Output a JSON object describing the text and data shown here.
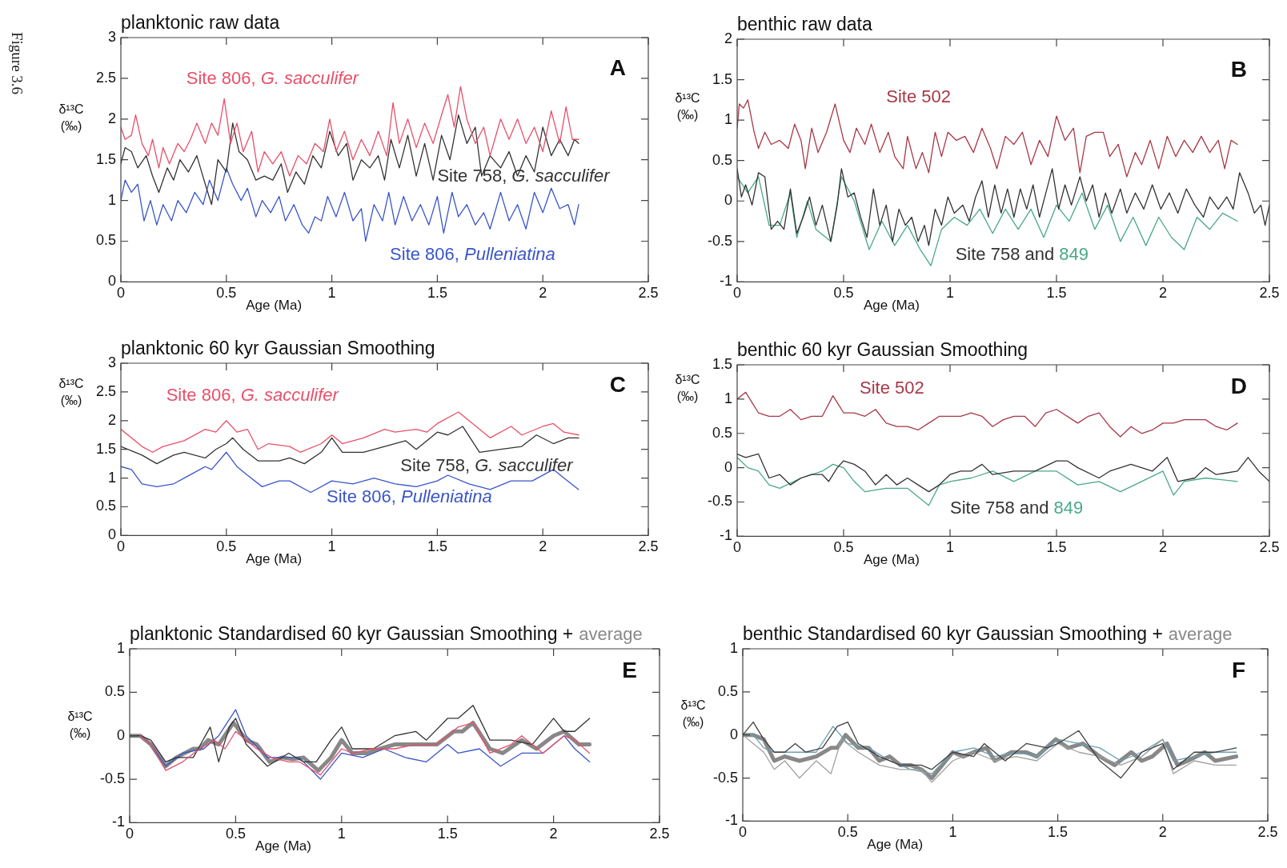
{
  "chart_data": [
    {
      "type": "line",
      "title": "planktonic raw data",
      "xlabel": "Age (Ma)",
      "ylabel": "δ¹³C (‰)",
      "annotations": [
        "A",
        "Figure 3.6"
      ],
      "xlim": [
        0,
        2.5
      ],
      "xticks": [
        0,
        0.5,
        1,
        1.5,
        2,
        2.5
      ],
      "ylim": [
        0,
        3
      ],
      "yticks": [
        0,
        0.5,
        1,
        1.5,
        2,
        2.5,
        3
      ],
      "series": [
        {
          "name": "Site 806, G. sacculifer",
          "color": "#e8506a",
          "x": [
            0,
            0.02,
            0.05,
            0.07,
            0.1,
            0.13,
            0.15,
            0.18,
            0.2,
            0.23,
            0.27,
            0.3,
            0.33,
            0.36,
            0.4,
            0.43,
            0.46,
            0.49,
            0.52,
            0.55,
            0.58,
            0.62,
            0.65,
            0.68,
            0.72,
            0.76,
            0.8,
            0.84,
            0.88,
            0.92,
            0.96,
            0.99,
            1.02,
            1.06,
            1.1,
            1.14,
            1.18,
            1.22,
            1.26,
            1.29,
            1.32,
            1.36,
            1.4,
            1.44,
            1.48,
            1.52,
            1.55,
            1.58,
            1.61,
            1.64,
            1.68,
            1.72,
            1.75,
            1.8,
            1.84,
            1.88,
            1.92,
            1.96,
            2.0,
            2.04,
            2.08,
            2.11,
            2.14,
            2.17
          ],
          "values": [
            1.9,
            1.75,
            1.8,
            2.05,
            1.7,
            1.55,
            1.75,
            1.4,
            1.65,
            1.45,
            1.7,
            1.6,
            1.75,
            1.95,
            1.7,
            1.95,
            1.8,
            2.25,
            1.7,
            1.95,
            1.6,
            1.85,
            1.35,
            1.6,
            1.45,
            1.6,
            1.3,
            1.55,
            1.45,
            1.7,
            1.6,
            2.0,
            1.6,
            1.85,
            1.5,
            1.75,
            1.55,
            1.85,
            1.55,
            2.2,
            1.7,
            2.0,
            1.65,
            1.95,
            1.7,
            2.05,
            2.3,
            1.9,
            2.4,
            2.0,
            1.7,
            1.9,
            1.55,
            2.0,
            1.75,
            2.0,
            1.7,
            1.9,
            1.6,
            2.1,
            1.7,
            2.15,
            1.75,
            1.75
          ]
        },
        {
          "name": "Site 758, G. sacculifer",
          "color": "#333333",
          "x": [
            0,
            0.02,
            0.05,
            0.08,
            0.12,
            0.15,
            0.18,
            0.22,
            0.25,
            0.28,
            0.32,
            0.36,
            0.4,
            0.43,
            0.46,
            0.5,
            0.53,
            0.56,
            0.6,
            0.64,
            0.68,
            0.72,
            0.76,
            0.79,
            0.83,
            0.87,
            0.91,
            0.95,
            0.99,
            1.03,
            1.07,
            1.1,
            1.14,
            1.18,
            1.22,
            1.25,
            1.28,
            1.32,
            1.36,
            1.4,
            1.44,
            1.48,
            1.52,
            1.56,
            1.6,
            1.64,
            1.68,
            1.71,
            1.75,
            1.8,
            1.84,
            1.88,
            1.92,
            1.96,
            2.0,
            2.04,
            2.08,
            2.12,
            2.15,
            2.17
          ],
          "values": [
            1.45,
            1.65,
            1.6,
            1.4,
            1.55,
            1.3,
            1.1,
            1.4,
            1.25,
            1.5,
            1.35,
            1.55,
            1.2,
            0.95,
            1.5,
            1.35,
            1.95,
            1.6,
            1.5,
            1.25,
            1.3,
            1.25,
            1.45,
            1.1,
            1.35,
            1.2,
            1.55,
            1.4,
            1.85,
            1.55,
            1.7,
            1.25,
            1.5,
            1.4,
            1.55,
            1.25,
            1.75,
            1.4,
            1.8,
            1.3,
            1.7,
            1.25,
            1.8,
            1.5,
            2.05,
            1.7,
            1.9,
            1.3,
            1.55,
            1.4,
            1.6,
            1.3,
            1.55,
            1.35,
            1.9,
            1.55,
            1.75,
            1.55,
            1.75,
            1.7
          ]
        },
        {
          "name": "Site 806, Pulleniatina",
          "color": "#3a55c8",
          "x": [
            0,
            0.02,
            0.05,
            0.08,
            0.11,
            0.14,
            0.17,
            0.2,
            0.24,
            0.27,
            0.31,
            0.35,
            0.39,
            0.42,
            0.46,
            0.5,
            0.53,
            0.57,
            0.6,
            0.64,
            0.67,
            0.71,
            0.75,
            0.78,
            0.82,
            0.86,
            0.89,
            0.92,
            0.95,
            0.98,
            1.02,
            1.06,
            1.1,
            1.14,
            1.16,
            1.2,
            1.24,
            1.27,
            1.3,
            1.34,
            1.38,
            1.42,
            1.46,
            1.5,
            1.53,
            1.57,
            1.6,
            1.64,
            1.68,
            1.72,
            1.75,
            1.8,
            1.84,
            1.88,
            1.92,
            1.96,
            2.0,
            2.04,
            2.08,
            2.12,
            2.15,
            2.17
          ],
          "values": [
            1.0,
            1.25,
            1.1,
            1.2,
            0.75,
            1.0,
            0.7,
            0.95,
            0.75,
            1.0,
            0.85,
            1.1,
            0.95,
            1.25,
            1.0,
            1.4,
            1.2,
            1.0,
            1.15,
            0.8,
            1.0,
            0.85,
            1.05,
            0.75,
            0.95,
            0.7,
            0.6,
            0.8,
            0.75,
            1.05,
            0.8,
            1.1,
            0.75,
            0.9,
            0.5,
            0.95,
            0.75,
            1.1,
            0.7,
            1.05,
            0.75,
            0.95,
            0.7,
            1.05,
            0.6,
            1.1,
            0.8,
            0.95,
            0.7,
            0.85,
            0.65,
            1.1,
            0.75,
            0.95,
            0.65,
            1.1,
            0.85,
            1.15,
            0.9,
            0.95,
            0.7,
            0.95
          ]
        }
      ]
    },
    {
      "type": "line",
      "title": "benthic raw data",
      "xlabel": "Age (Ma)",
      "ylabel": "δ¹³C (‰)",
      "annotations": [
        "B"
      ],
      "xlim": [
        0,
        2.5
      ],
      "xticks": [
        0,
        0.5,
        1,
        1.5,
        2,
        2.5
      ],
      "ylim": [
        -1,
        2
      ],
      "yticks": [
        -1,
        -0.5,
        0,
        0.5,
        1,
        1.5,
        2
      ],
      "series": [
        {
          "name": "Site 502",
          "color": "#a83848",
          "x": [
            0,
            0.01,
            0.03,
            0.05,
            0.08,
            0.1,
            0.13,
            0.16,
            0.2,
            0.24,
            0.27,
            0.3,
            0.32,
            0.35,
            0.38,
            0.42,
            0.46,
            0.5,
            0.53,
            0.56,
            0.6,
            0.63,
            0.67,
            0.71,
            0.74,
            0.78,
            0.8,
            0.84,
            0.87,
            0.9,
            0.93,
            0.96,
            0.99,
            1.03,
            1.07,
            1.11,
            1.15,
            1.19,
            1.22,
            1.26,
            1.3,
            1.34,
            1.38,
            1.42,
            1.46,
            1.5,
            1.54,
            1.58,
            1.61,
            1.64,
            1.68,
            1.72,
            1.75,
            1.79,
            1.83,
            1.87,
            1.9,
            1.94,
            1.98,
            2.02,
            2.06,
            2.1,
            2.14,
            2.18,
            2.22,
            2.26,
            2.29,
            2.32,
            2.35
          ],
          "values": [
            0.9,
            1.2,
            1.15,
            1.25,
            0.85,
            0.65,
            0.85,
            0.7,
            0.75,
            0.65,
            0.95,
            0.75,
            0.4,
            0.9,
            0.6,
            0.85,
            1.2,
            0.75,
            0.6,
            0.9,
            0.7,
            0.95,
            0.6,
            0.85,
            0.55,
            0.4,
            0.8,
            0.4,
            0.6,
            0.35,
            0.85,
            0.55,
            0.85,
            0.75,
            0.8,
            0.6,
            0.9,
            0.65,
            0.4,
            0.8,
            0.7,
            0.85,
            0.45,
            0.75,
            0.55,
            1.05,
            0.75,
            0.9,
            0.35,
            0.8,
            0.85,
            0.85,
            0.55,
            0.7,
            0.3,
            0.6,
            0.45,
            0.75,
            0.4,
            0.8,
            0.55,
            0.75,
            0.6,
            0.8,
            0.6,
            0.75,
            0.4,
            0.75,
            0.7
          ]
        },
        {
          "name": "Site 758 and",
          "color": "#333333",
          "x": [
            0,
            0.02,
            0.04,
            0.07,
            0.1,
            0.13,
            0.16,
            0.19,
            0.22,
            0.25,
            0.28,
            0.31,
            0.34,
            0.37,
            0.4,
            0.44,
            0.47,
            0.49,
            0.52,
            0.55,
            0.58,
            0.61,
            0.64,
            0.67,
            0.7,
            0.73,
            0.76,
            0.79,
            0.82,
            0.85,
            0.88,
            0.9,
            0.93,
            0.96,
            0.99,
            1.02,
            1.06,
            1.09,
            1.12,
            1.15,
            1.18,
            1.21,
            1.24,
            1.27,
            1.3,
            1.33,
            1.36,
            1.39,
            1.42,
            1.45,
            1.48,
            1.51,
            1.54,
            1.57,
            1.61,
            1.64,
            1.67,
            1.7,
            1.73,
            1.76,
            1.8,
            1.83,
            1.87,
            1.91,
            1.95,
            1.99,
            2.03,
            2.07,
            2.11,
            2.15,
            2.19,
            2.22,
            2.26,
            2.3,
            2.33,
            2.36,
            2.4,
            2.43,
            2.46,
            2.48,
            2.5
          ],
          "values": [
            0.4,
            0.05,
            0.2,
            -0.05,
            0.35,
            0.3,
            -0.35,
            -0.25,
            -0.35,
            0.15,
            -0.4,
            -0.2,
            0.05,
            -0.3,
            -0.05,
            -0.5,
            -0.05,
            0.4,
            0.05,
            0.1,
            -0.2,
            -0.45,
            0.15,
            -0.3,
            -0.05,
            -0.5,
            -0.1,
            -0.3,
            -0.2,
            -0.5,
            -0.3,
            -0.55,
            -0.1,
            -0.3,
            0.05,
            -0.15,
            -0.05,
            -0.25,
            0.05,
            0.25,
            -0.2,
            0.2,
            -0.15,
            0.15,
            -0.2,
            0.15,
            -0.1,
            0.2,
            -0.2,
            0.1,
            0.4,
            -0.1,
            0.2,
            -0.05,
            0.3,
            0.0,
            0.2,
            -0.2,
            0.1,
            -0.15,
            0.15,
            -0.15,
            0.1,
            -0.1,
            0.2,
            -0.1,
            0.1,
            -0.15,
            0.15,
            -0.05,
            -0.2,
            0.05,
            -0.1,
            0.05,
            -0.1,
            0.35,
            0.1,
            -0.15,
            -0.05,
            -0.3,
            -0.05
          ]
        },
        {
          "name": "849",
          "color": "#4aa888",
          "x": [
            0,
            0.05,
            0.1,
            0.15,
            0.2,
            0.25,
            0.28,
            0.33,
            0.37,
            0.44,
            0.49,
            0.55,
            0.62,
            0.68,
            0.74,
            0.8,
            0.86,
            0.91,
            0.96,
            1.02,
            1.08,
            1.14,
            1.2,
            1.26,
            1.32,
            1.38,
            1.44,
            1.5,
            1.56,
            1.62,
            1.68,
            1.74,
            1.8,
            1.86,
            1.92,
            1.98,
            2.04,
            2.1,
            2.16,
            2.22,
            2.28,
            2.35
          ],
          "values": [
            0.3,
            0.1,
            0.3,
            -0.3,
            -0.3,
            0.1,
            -0.45,
            0.0,
            -0.35,
            -0.5,
            0.3,
            0.0,
            -0.6,
            -0.25,
            -0.55,
            -0.3,
            -0.6,
            -0.8,
            -0.35,
            -0.2,
            -0.3,
            -0.1,
            -0.4,
            -0.1,
            -0.35,
            -0.1,
            -0.45,
            -0.05,
            -0.25,
            0.1,
            -0.35,
            -0.05,
            -0.5,
            -0.2,
            -0.55,
            -0.2,
            -0.45,
            -0.6,
            -0.2,
            -0.35,
            -0.15,
            -0.25
          ]
        }
      ]
    },
    {
      "type": "line",
      "title": "planktonic 60 kyr Gaussian Smoothing",
      "xlabel": "Age (Ma)",
      "ylabel": "δ¹³C (‰)",
      "annotations": [
        "C"
      ],
      "xlim": [
        0,
        2.5
      ],
      "xticks": [
        0,
        0.5,
        1,
        1.5,
        2,
        2.5
      ],
      "ylim": [
        0,
        3
      ],
      "yticks": [
        0,
        0.5,
        1,
        1.5,
        2,
        2.5,
        3
      ],
      "series": [
        {
          "name": "Site 806, G. sacculifer",
          "color": "#e8506a",
          "x": [
            0,
            0.1,
            0.15,
            0.2,
            0.3,
            0.4,
            0.45,
            0.5,
            0.55,
            0.6,
            0.65,
            0.7,
            0.8,
            0.85,
            0.95,
            1.0,
            1.05,
            1.15,
            1.25,
            1.3,
            1.4,
            1.45,
            1.5,
            1.6,
            1.65,
            1.75,
            1.85,
            1.9,
            2.0,
            2.05,
            2.1,
            2.17
          ],
          "values": [
            1.85,
            1.55,
            1.45,
            1.55,
            1.65,
            1.85,
            1.8,
            2.0,
            1.8,
            1.85,
            1.5,
            1.6,
            1.55,
            1.45,
            1.6,
            1.75,
            1.6,
            1.7,
            1.85,
            1.8,
            1.85,
            1.8,
            1.95,
            2.15,
            2.0,
            1.7,
            1.9,
            1.75,
            1.9,
            1.95,
            1.8,
            1.75
          ]
        },
        {
          "name": "Site 758, G. sacculifer",
          "color": "#333333",
          "x": [
            0,
            0.1,
            0.17,
            0.25,
            0.3,
            0.4,
            0.45,
            0.5,
            0.53,
            0.58,
            0.65,
            0.75,
            0.8,
            0.87,
            0.95,
            1.0,
            1.05,
            1.15,
            1.25,
            1.35,
            1.4,
            1.45,
            1.5,
            1.55,
            1.62,
            1.7,
            1.8,
            1.9,
            1.97,
            2.05,
            2.12,
            2.17
          ],
          "values": [
            1.55,
            1.4,
            1.25,
            1.4,
            1.45,
            1.35,
            1.5,
            1.6,
            1.7,
            1.5,
            1.3,
            1.3,
            1.35,
            1.25,
            1.45,
            1.7,
            1.45,
            1.45,
            1.55,
            1.65,
            1.5,
            1.65,
            1.8,
            1.75,
            1.9,
            1.45,
            1.5,
            1.55,
            1.75,
            1.6,
            1.7,
            1.7
          ]
        },
        {
          "name": "Site 806, Pulleniatina",
          "color": "#3a55c8",
          "x": [
            0,
            0.05,
            0.1,
            0.17,
            0.25,
            0.3,
            0.4,
            0.43,
            0.5,
            0.55,
            0.6,
            0.67,
            0.75,
            0.8,
            0.9,
            1.0,
            1.1,
            1.2,
            1.3,
            1.4,
            1.5,
            1.55,
            1.65,
            1.75,
            1.85,
            1.95,
            2.05,
            2.1,
            2.17
          ],
          "values": [
            1.2,
            1.15,
            0.9,
            0.85,
            0.9,
            1.0,
            1.2,
            1.15,
            1.45,
            1.2,
            1.05,
            0.85,
            0.95,
            0.95,
            0.75,
            0.95,
            0.9,
            1.0,
            0.9,
            0.85,
            0.95,
            1.05,
            0.9,
            0.8,
            0.95,
            0.95,
            1.15,
            1.0,
            0.8
          ]
        }
      ]
    },
    {
      "type": "line",
      "title": "benthic 60 kyr Gaussian Smoothing",
      "xlabel": "Age (Ma)",
      "ylabel": "δ¹³C (‰)",
      "annotations": [
        "D"
      ],
      "xlim": [
        0,
        2.5
      ],
      "xticks": [
        0,
        0.5,
        1,
        1.5,
        2,
        2.5
      ],
      "ylim": [
        -1,
        1.5
      ],
      "yticks": [
        -1,
        -0.5,
        0,
        0.5,
        1,
        1.5
      ],
      "series": [
        {
          "name": "Site 502",
          "color": "#a83848",
          "x": [
            0,
            0.04,
            0.1,
            0.15,
            0.2,
            0.25,
            0.3,
            0.35,
            0.4,
            0.45,
            0.5,
            0.55,
            0.6,
            0.65,
            0.7,
            0.75,
            0.8,
            0.85,
            0.9,
            0.95,
            1.0,
            1.05,
            1.1,
            1.15,
            1.2,
            1.25,
            1.3,
            1.35,
            1.4,
            1.45,
            1.5,
            1.6,
            1.65,
            1.7,
            1.75,
            1.8,
            1.85,
            1.9,
            1.95,
            2.0,
            2.05,
            2.1,
            2.2,
            2.25,
            2.3,
            2.35
          ],
          "values": [
            1.0,
            1.1,
            0.8,
            0.75,
            0.75,
            0.85,
            0.7,
            0.75,
            0.75,
            1.05,
            0.8,
            0.8,
            0.75,
            0.85,
            0.65,
            0.6,
            0.6,
            0.55,
            0.65,
            0.75,
            0.75,
            0.75,
            0.8,
            0.75,
            0.6,
            0.7,
            0.75,
            0.75,
            0.6,
            0.8,
            0.85,
            0.65,
            0.75,
            0.8,
            0.6,
            0.45,
            0.6,
            0.5,
            0.55,
            0.65,
            0.65,
            0.7,
            0.7,
            0.6,
            0.55,
            0.65
          ]
        },
        {
          "name": "Site 758 and",
          "color": "#333333",
          "x": [
            0,
            0.04,
            0.1,
            0.15,
            0.2,
            0.25,
            0.3,
            0.35,
            0.4,
            0.43,
            0.47,
            0.5,
            0.55,
            0.6,
            0.65,
            0.7,
            0.75,
            0.8,
            0.85,
            0.9,
            0.95,
            1.0,
            1.05,
            1.1,
            1.15,
            1.2,
            1.3,
            1.4,
            1.5,
            1.55,
            1.6,
            1.7,
            1.75,
            1.85,
            1.95,
            2.02,
            2.07,
            2.15,
            2.2,
            2.25,
            2.35,
            2.4,
            2.45,
            2.5
          ],
          "values": [
            0.2,
            0.15,
            0.2,
            -0.15,
            -0.1,
            -0.25,
            -0.15,
            -0.1,
            -0.1,
            -0.2,
            0.0,
            0.1,
            0.05,
            -0.05,
            -0.25,
            -0.1,
            -0.25,
            -0.15,
            -0.25,
            -0.35,
            -0.25,
            -0.1,
            -0.05,
            -0.05,
            0.05,
            -0.1,
            -0.05,
            -0.05,
            0.1,
            0.1,
            0.0,
            -0.15,
            -0.05,
            0.05,
            -0.05,
            0.15,
            -0.2,
            -0.15,
            0.0,
            -0.1,
            -0.05,
            0.15,
            -0.05,
            -0.2
          ]
        },
        {
          "name": "849",
          "color": "#4aa888",
          "x": [
            0,
            0.05,
            0.1,
            0.15,
            0.2,
            0.3,
            0.4,
            0.45,
            0.5,
            0.55,
            0.6,
            0.7,
            0.8,
            0.9,
            0.95,
            1.0,
            1.1,
            1.2,
            1.3,
            1.4,
            1.5,
            1.6,
            1.7,
            1.8,
            1.9,
            2.0,
            2.05,
            2.1,
            2.2,
            2.35
          ],
          "values": [
            0.15,
            0.0,
            -0.05,
            -0.25,
            -0.3,
            -0.15,
            -0.05,
            0.05,
            0.0,
            -0.2,
            -0.35,
            -0.3,
            -0.3,
            -0.55,
            -0.25,
            -0.2,
            -0.15,
            -0.05,
            -0.2,
            -0.05,
            -0.05,
            -0.25,
            -0.2,
            -0.35,
            -0.2,
            -0.05,
            -0.4,
            -0.2,
            -0.15,
            -0.2
          ]
        }
      ]
    },
    {
      "type": "line",
      "title": "planktonic Standardised 60 kyr Gaussian Smoothing +",
      "xlabel": "Age (Ma)",
      "ylabel": "δ¹³C (‰)",
      "annotations": [
        "E"
      ],
      "xlim": [
        0,
        2.5
      ],
      "xticks": [
        0,
        0.5,
        1,
        1.5,
        2,
        2.5
      ],
      "ylim": [
        -1,
        1
      ],
      "yticks": [
        -1,
        -0.5,
        0,
        0.5,
        1
      ],
      "series": [
        {
          "color": "#e8506a",
          "x": [
            0.05,
            0.1,
            0.17,
            0.25,
            0.33,
            0.4,
            0.45,
            0.5,
            0.55,
            0.6,
            0.67,
            0.75,
            0.8,
            0.9,
            1.0,
            1.05,
            1.15,
            1.25,
            1.35,
            1.45,
            1.55,
            1.62,
            1.7,
            1.8,
            1.85,
            1.95,
            2.05,
            2.1,
            2.17
          ],
          "values": [
            0.0,
            -0.1,
            -0.4,
            -0.3,
            -0.15,
            -0.05,
            -0.15,
            0.05,
            -0.05,
            -0.15,
            -0.25,
            -0.3,
            -0.3,
            -0.45,
            -0.15,
            -0.2,
            -0.15,
            -0.15,
            -0.1,
            -0.1,
            0.1,
            0.15,
            -0.2,
            -0.1,
            0.0,
            -0.2,
            0.0,
            -0.05,
            -0.2
          ]
        },
        {
          "color": "#333333",
          "x": [
            0,
            0.05,
            0.1,
            0.17,
            0.22,
            0.3,
            0.38,
            0.42,
            0.47,
            0.5,
            0.55,
            0.65,
            0.75,
            0.82,
            0.88,
            0.95,
            1.0,
            1.05,
            1.15,
            1.25,
            1.35,
            1.4,
            1.5,
            1.55,
            1.62,
            1.7,
            1.8,
            1.9,
            2.0,
            2.05,
            2.1,
            2.17
          ],
          "values": [
            0.0,
            0.0,
            -0.05,
            -0.3,
            -0.25,
            -0.25,
            0.1,
            -0.3,
            0.1,
            0.2,
            -0.1,
            -0.35,
            -0.2,
            -0.3,
            -0.3,
            -0.05,
            0.1,
            -0.15,
            -0.15,
            0.0,
            0.05,
            -0.05,
            0.2,
            0.2,
            0.35,
            -0.05,
            -0.05,
            -0.1,
            0.2,
            0.05,
            0.05,
            0.2
          ]
        },
        {
          "color": "#3a55c8",
          "x": [
            0,
            0.05,
            0.1,
            0.17,
            0.25,
            0.35,
            0.42,
            0.5,
            0.55,
            0.65,
            0.75,
            0.8,
            0.9,
            1.0,
            1.1,
            1.2,
            1.3,
            1.4,
            1.5,
            1.55,
            1.65,
            1.75,
            1.85,
            1.95,
            2.05,
            2.1,
            2.17
          ],
          "values": [
            0.0,
            0.0,
            -0.1,
            -0.35,
            -0.2,
            -0.15,
            0.0,
            0.3,
            0.0,
            -0.25,
            -0.25,
            -0.25,
            -0.5,
            -0.2,
            -0.25,
            -0.15,
            -0.25,
            -0.3,
            -0.1,
            -0.2,
            -0.15,
            -0.35,
            -0.2,
            -0.2,
            0.0,
            -0.15,
            -0.3
          ]
        },
        {
          "name": "average",
          "color": "#888888",
          "x": [
            0,
            0.05,
            0.1,
            0.17,
            0.22,
            0.3,
            0.33,
            0.37,
            0.42,
            0.49,
            0.55,
            0.6,
            0.66,
            0.72,
            0.77,
            0.82,
            0.89,
            0.95,
            1.0,
            1.05,
            1.12,
            1.18,
            1.25,
            1.35,
            1.45,
            1.53,
            1.57,
            1.62,
            1.7,
            1.76,
            1.85,
            1.92,
            2.0,
            2.05,
            2.12,
            2.17
          ],
          "values": [
            0.0,
            0.0,
            -0.1,
            -0.35,
            -0.25,
            -0.15,
            -0.15,
            -0.05,
            -0.1,
            0.15,
            -0.05,
            -0.1,
            -0.3,
            -0.25,
            -0.27,
            -0.25,
            -0.4,
            -0.25,
            -0.05,
            -0.2,
            -0.2,
            -0.15,
            -0.1,
            -0.1,
            -0.1,
            0.05,
            0.05,
            0.15,
            -0.15,
            -0.2,
            -0.05,
            -0.15,
            0.0,
            0.05,
            -0.1,
            -0.1
          ]
        }
      ]
    },
    {
      "type": "line",
      "title": "benthic Standardised 60 kyr Gaussian Smoothing +",
      "xlabel": "Age (Ma)",
      "ylabel": "δ¹³C (‰)",
      "annotations": [
        "F"
      ],
      "xlim": [
        0,
        2.5
      ],
      "xticks": [
        0,
        0.5,
        1,
        1.5,
        2,
        2.5
      ],
      "ylim": [
        -1,
        1
      ],
      "yticks": [
        -1,
        -0.5,
        0,
        0.5,
        1
      ],
      "series": [
        {
          "color": "#404040",
          "x": [
            0,
            0.05,
            0.1,
            0.15,
            0.2,
            0.25,
            0.3,
            0.38,
            0.45,
            0.5,
            0.55,
            0.65,
            0.75,
            0.85,
            0.9,
            1.0,
            1.1,
            1.15,
            1.25,
            1.35,
            1.45,
            1.5,
            1.6,
            1.7,
            1.8,
            1.9,
            2.0,
            2.05,
            2.15,
            2.25,
            2.35
          ],
          "values": [
            0.0,
            0.15,
            -0.05,
            -0.2,
            -0.2,
            -0.1,
            -0.2,
            -0.15,
            0.1,
            0.15,
            -0.1,
            -0.25,
            -0.35,
            -0.35,
            -0.4,
            -0.2,
            -0.25,
            -0.1,
            -0.3,
            -0.1,
            -0.15,
            -0.1,
            0.05,
            -0.3,
            -0.5,
            -0.2,
            -0.1,
            -0.4,
            -0.2,
            -0.2,
            -0.15
          ]
        },
        {
          "color": "#a0a0a0",
          "x": [
            0,
            0.05,
            0.1,
            0.15,
            0.2,
            0.27,
            0.35,
            0.42,
            0.47,
            0.55,
            0.65,
            0.75,
            0.85,
            0.9,
            1.0,
            1.1,
            1.2,
            1.3,
            1.4,
            1.5,
            1.6,
            1.7,
            1.8,
            1.9,
            2.0,
            2.05,
            2.15,
            2.25,
            2.35
          ],
          "values": [
            0.0,
            -0.1,
            -0.2,
            -0.4,
            -0.3,
            -0.5,
            -0.3,
            -0.45,
            -0.05,
            -0.2,
            -0.35,
            -0.4,
            -0.4,
            -0.55,
            -0.3,
            -0.2,
            -0.3,
            -0.25,
            -0.3,
            -0.1,
            -0.2,
            -0.25,
            -0.35,
            -0.25,
            -0.05,
            -0.45,
            -0.3,
            -0.35,
            -0.35
          ]
        },
        {
          "color": "#6aa0b0",
          "x": [
            0,
            0.05,
            0.1,
            0.15,
            0.25,
            0.35,
            0.43,
            0.5,
            0.6,
            0.7,
            0.8,
            0.9,
            1.0,
            1.1,
            1.2,
            1.3,
            1.4,
            1.5,
            1.6,
            1.7,
            1.8,
            1.9,
            2.0,
            2.05,
            2.15,
            2.25,
            2.35
          ],
          "values": [
            0.0,
            0.0,
            -0.15,
            -0.2,
            -0.2,
            -0.2,
            0.1,
            -0.1,
            -0.15,
            -0.3,
            -0.4,
            -0.45,
            -0.2,
            -0.15,
            -0.25,
            -0.2,
            -0.25,
            -0.05,
            -0.1,
            -0.15,
            -0.3,
            -0.2,
            -0.05,
            -0.3,
            -0.25,
            -0.2,
            -0.2
          ]
        },
        {
          "name": "average",
          "color": "#888888",
          "x": [
            0,
            0.05,
            0.1,
            0.15,
            0.2,
            0.27,
            0.35,
            0.42,
            0.45,
            0.49,
            0.55,
            0.6,
            0.65,
            0.7,
            0.75,
            0.8,
            0.85,
            0.9,
            0.95,
            1.0,
            1.05,
            1.1,
            1.16,
            1.2,
            1.28,
            1.35,
            1.4,
            1.49,
            1.55,
            1.62,
            1.7,
            1.77,
            1.85,
            1.9,
            1.95,
            2.02,
            2.07,
            2.12,
            2.2,
            2.25,
            2.35
          ],
          "values": [
            0.0,
            0.0,
            -0.05,
            -0.3,
            -0.25,
            -0.3,
            -0.25,
            -0.15,
            -0.15,
            0.0,
            -0.15,
            -0.15,
            -0.3,
            -0.25,
            -0.35,
            -0.35,
            -0.4,
            -0.5,
            -0.35,
            -0.2,
            -0.25,
            -0.2,
            -0.15,
            -0.3,
            -0.2,
            -0.2,
            -0.25,
            -0.05,
            -0.15,
            -0.1,
            -0.25,
            -0.35,
            -0.2,
            -0.3,
            -0.25,
            -0.1,
            -0.35,
            -0.3,
            -0.2,
            -0.3,
            -0.25
          ]
        }
      ]
    }
  ]
}
